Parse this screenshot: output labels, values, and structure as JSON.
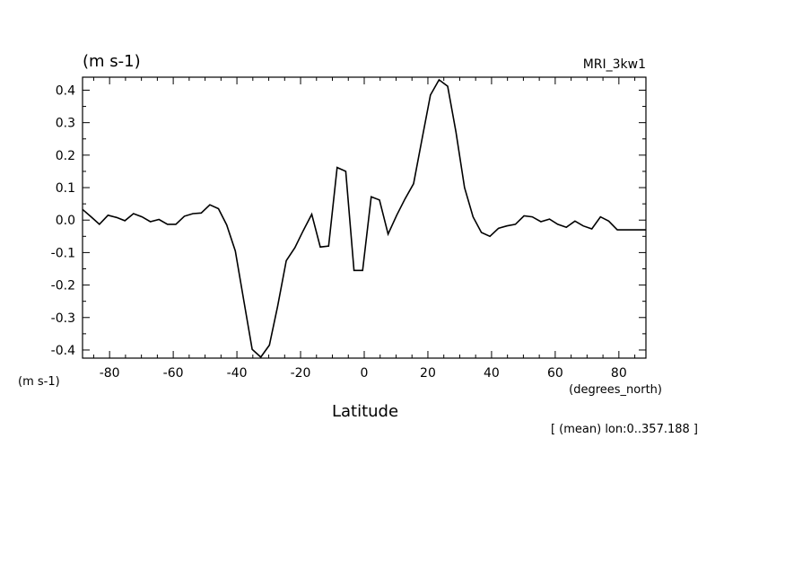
{
  "chart_data": {
    "type": "line",
    "unit_top": "(m s-1)",
    "model_label": "MRI_3kw1",
    "yunit_bottom": "(m s-1)",
    "xunit": "(degrees_north)",
    "xlabel": "Latitude",
    "subtitle": "[ (mean) lon:0..357.188 ]",
    "xlim": [
      -88.5,
      88.5
    ],
    "ylim": [
      -0.425,
      0.44
    ],
    "xticks": [
      -80,
      -60,
      -40,
      -20,
      0,
      20,
      40,
      60,
      80
    ],
    "yticks": [
      -0.4,
      -0.3,
      -0.2,
      -0.1,
      0.0,
      0.1,
      0.2,
      0.3,
      0.4
    ],
    "ytick_labels": [
      "-0.4",
      "-0.3",
      "-0.2",
      "-0.1",
      "0.0",
      "0.1",
      "0.2",
      "0.3",
      "0.4"
    ],
    "xtick_labels": [
      "-80",
      "-60",
      "-40",
      "-20",
      "0",
      "20",
      "40",
      "60",
      "80"
    ],
    "grid": false,
    "series": [
      {
        "x": [
          -88.5,
          -85.8,
          -83.2,
          -80.5,
          -77.8,
          -75.2,
          -72.5,
          -69.8,
          -67.2,
          -64.5,
          -61.8,
          -59.2,
          -56.5,
          -53.8,
          -51.2,
          -48.5,
          -45.8,
          -43.2,
          -40.5,
          -37.8,
          -35.2,
          -32.5,
          -29.8,
          -27.2,
          -24.5,
          -21.8,
          -19.2,
          -16.5,
          -13.8,
          -11.2,
          -8.5,
          -5.8,
          -3.2,
          -0.5,
          2.2,
          4.8,
          7.5,
          10.2,
          12.8,
          15.5,
          18.2,
          20.8,
          23.5,
          26.2,
          28.8,
          31.5,
          34.2,
          36.8,
          39.5,
          42.2,
          44.8,
          47.5,
          50.2,
          52.8,
          55.5,
          58.2,
          60.8,
          63.5,
          66.2,
          68.8,
          71.5,
          74.2,
          76.8,
          79.5,
          82.2,
          84.8,
          87.5,
          88.5
        ],
        "y": [
          0.033,
          0.01,
          -0.013,
          0.015,
          0.008,
          -0.002,
          0.02,
          0.01,
          -0.005,
          0.002,
          -0.013,
          -0.013,
          0.012,
          0.02,
          0.022,
          0.047,
          0.035,
          -0.015,
          -0.095,
          -0.25,
          -0.398,
          -0.422,
          -0.385,
          -0.265,
          -0.125,
          -0.085,
          -0.033,
          0.018,
          -0.083,
          -0.08,
          0.162,
          0.15,
          -0.155,
          -0.155,
          0.072,
          0.062,
          -0.043,
          0.015,
          0.065,
          0.112,
          0.252,
          0.385,
          0.432,
          0.412,
          0.272,
          0.1,
          0.01,
          -0.038,
          -0.05,
          -0.025,
          -0.018,
          -0.013,
          0.013,
          0.01,
          -0.005,
          0.003,
          -0.013,
          -0.022,
          -0.003,
          -0.018,
          -0.027,
          0.01,
          -0.003,
          -0.03,
          -0.03,
          -0.03,
          -0.03,
          -0.03
        ]
      }
    ]
  }
}
